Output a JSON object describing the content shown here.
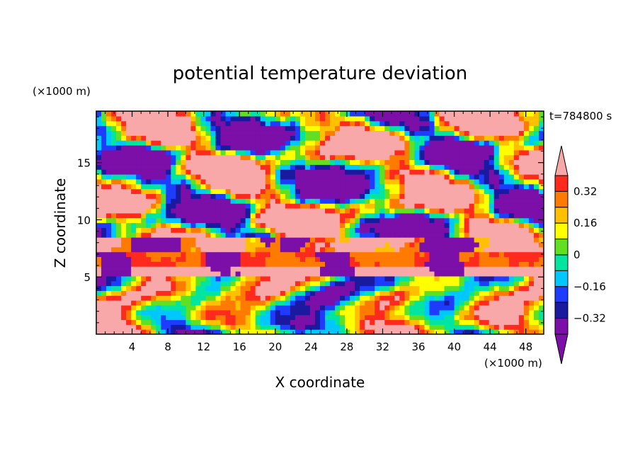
{
  "chart_data": {
    "type": "heatmap",
    "title": "potential temperature deviation",
    "xlabel": "X coordinate",
    "ylabel": "Z coordinate",
    "x_unit": "(×1000 m)",
    "y_unit": "(×1000 m)",
    "time_label": "t=784800 s",
    "xlim": [
      0,
      50
    ],
    "ylim": [
      0,
      19.5
    ],
    "x_ticks": [
      4,
      8,
      12,
      16,
      20,
      24,
      28,
      32,
      36,
      40,
      44,
      48
    ],
    "x_tick_labels": [
      "4",
      "8",
      "12",
      "16",
      "20",
      "24",
      "28",
      "32",
      "36",
      "40",
      "44",
      "48"
    ],
    "y_ticks": [
      5,
      10,
      15
    ],
    "y_tick_labels": [
      "5",
      "10",
      "15"
    ],
    "colorbar": {
      "levels": [
        -0.4,
        -0.32,
        -0.24,
        -0.16,
        -0.08,
        0,
        0.08,
        0.16,
        0.24,
        0.32,
        0.4
      ],
      "tick_values": [
        0.32,
        0.16,
        0,
        -0.16,
        -0.32
      ],
      "tick_labels": [
        "0.32",
        "0.16",
        "0",
        "−0.16",
        "−0.32"
      ],
      "colors": [
        "#7b0fa8",
        "#1a1aa0",
        "#1e3cff",
        "#00c8ff",
        "#00e6a0",
        "#60e020",
        "#ffff00",
        "#ffc000",
        "#ff7a00",
        "#ff2a1e",
        "#f8a8a8"
      ],
      "extend": "both"
    }
  }
}
